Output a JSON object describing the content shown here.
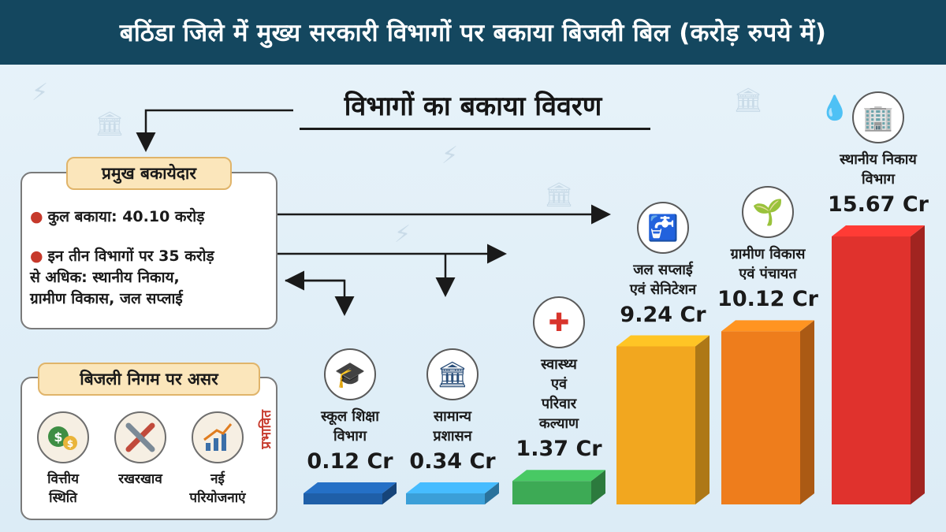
{
  "header": {
    "title": "बठिंडा जिले में मुख्य सरकारी विभागों पर बकाया बिजली बिल (करोड़ रुपये में)"
  },
  "subtitle": "विभागों का बकाया विवरण",
  "key_defaulters": {
    "title": "प्रमुख बकायेदार",
    "bullets": [
      "कुल बकाया: 40.10 करोड़",
      "इन तीन विभागों पर 35 करोड़",
      "से अधिक: स्थानीय निकाय,",
      "ग्रामीण विकास, जल सप्लाई"
    ]
  },
  "impact": {
    "title": "बिजली निगम पर असर",
    "side_label": "प्रभावित",
    "items": [
      {
        "icon": "money-bag-icon",
        "line1": "वित्तीय",
        "line2": "स्थिति"
      },
      {
        "icon": "tools-icon",
        "line1": "रखरखाव",
        "line2": ""
      },
      {
        "icon": "growth-chart-icon",
        "line1": "नई",
        "line2": "परियोजनाएं"
      }
    ]
  },
  "chart_data": {
    "type": "bar",
    "title": "बठिंडा जिले में मुख्य सरकारी विभागों पर बकाया बिजली बिल (करोड़ रुपये में)",
    "subtitle": "विभागों का बकाया विवरण",
    "categories": [
      "स्कूल शिक्षा विभाग",
      "सामान्य प्रशासन",
      "स्वास्थ्य एवं परिवार कल्याण",
      "जल सप्लाई एवं सेनिटेशन",
      "ग्रामीण विकास एवं पंचायत",
      "स्थानीय निकाय विभाग"
    ],
    "values": [
      0.12,
      0.34,
      1.37,
      9.24,
      10.12,
      15.67
    ],
    "value_labels": [
      "0.12 Cr",
      "0.34 Cr",
      "1.37 Cr",
      "9.24 Cr",
      "10.12 Cr",
      "15.67 Cr"
    ],
    "unit": "Cr",
    "colors": [
      "#1f5fa8",
      "#3b9fd8",
      "#3daa55",
      "#f2a71f",
      "#ee7d1c",
      "#e0322d"
    ],
    "icons": [
      "school-icon",
      "government-building-icon",
      "health-cross-icon",
      "water-tap-icon",
      "rural-development-icon",
      "municipal-building-icon"
    ],
    "label_lines": [
      [
        "स्कूल शिक्षा",
        "विभाग"
      ],
      [
        "सामान्य",
        "प्रशासन"
      ],
      [
        "स्वास्थ्य",
        "एवं",
        "परिवार",
        "कल्याण"
      ],
      [
        "जल सप्लाई",
        "एवं सेनिटेशन"
      ],
      [
        "ग्रामीण विकास",
        "एवं पंचायत"
      ],
      [
        "स्थानीय निकाय",
        "विभाग"
      ]
    ]
  }
}
